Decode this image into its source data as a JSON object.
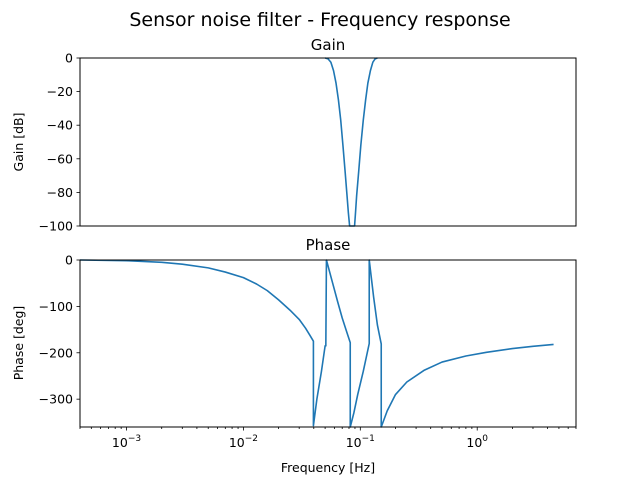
{
  "chart_data": {
    "title": "Sensor noise filter - Frequency response",
    "type": "line",
    "line_color": "#1f77b4",
    "x_scale": "log",
    "x_range": [
      0.0004,
      7.0
    ],
    "xlabel": "Frequency [Hz]",
    "x_major_ticks": [
      {
        "value": 0.001,
        "label": "10",
        "exp": "−3"
      },
      {
        "value": 0.01,
        "label": "10",
        "exp": "−2"
      },
      {
        "value": 0.1,
        "label": "10",
        "exp": "−1"
      },
      {
        "value": 1,
        "label": "10",
        "exp": "0"
      }
    ],
    "subplots": [
      {
        "title": "Gain",
        "ylabel": "Gain [dB]",
        "ylim": [
          -100,
          0
        ],
        "yticks": [
          {
            "value": 0,
            "label": "0"
          },
          {
            "value": -20,
            "label": "−20"
          },
          {
            "value": -40,
            "label": "−40"
          },
          {
            "value": -60,
            "label": "−60"
          },
          {
            "value": -80,
            "label": "−80"
          },
          {
            "value": -100,
            "label": "−100"
          }
        ],
        "show_x_ticks": false,
        "series": [
          {
            "points": [
              [
                0.05,
                0.0
              ],
              [
                0.053,
                -0.5
              ],
              [
                0.056,
                -2.5
              ],
              [
                0.059,
                -7.5
              ],
              [
                0.062,
                -15
              ],
              [
                0.065,
                -25
              ],
              [
                0.068,
                -37
              ],
              [
                0.071,
                -52
              ],
              [
                0.074,
                -67
              ],
              [
                0.077,
                -82
              ],
              [
                0.079,
                -92
              ],
              [
                0.081,
                -100
              ],
              [
                0.0893,
                -100
              ],
              [
                0.091,
                -92
              ],
              [
                0.093,
                -82
              ],
              [
                0.097,
                -67
              ],
              [
                0.101,
                -52
              ],
              [
                0.106,
                -37
              ],
              [
                0.111,
                -25
              ],
              [
                0.116,
                -15
              ],
              [
                0.122,
                -7.5
              ],
              [
                0.128,
                -2.5
              ],
              [
                0.134,
                -0.5
              ],
              [
                0.14,
                0.0
              ]
            ]
          }
        ]
      },
      {
        "title": "Phase",
        "ylabel": "Phase [deg]",
        "ylim": [
          -360,
          0
        ],
        "yticks": [
          {
            "value": 0,
            "label": "0"
          },
          {
            "value": -100,
            "label": "−100"
          },
          {
            "value": -200,
            "label": "−200"
          },
          {
            "value": -300,
            "label": "−300"
          }
        ],
        "show_x_ticks": true,
        "series": [
          {
            "points": [
              [
                0.0004,
                0
              ],
              [
                0.001,
                -1.5
              ],
              [
                0.002,
                -5
              ],
              [
                0.003,
                -9
              ],
              [
                0.005,
                -17
              ],
              [
                0.007,
                -26
              ],
              [
                0.01,
                -38
              ],
              [
                0.013,
                -52
              ],
              [
                0.016,
                -66
              ],
              [
                0.02,
                -86
              ],
              [
                0.025,
                -108
              ],
              [
                0.03,
                -128
              ],
              [
                0.034,
                -147
              ],
              [
                0.037,
                -162
              ],
              [
                0.0397,
                -175
              ],
              [
                0.0397,
                -357
              ],
              [
                0.0425,
                -300
              ],
              [
                0.0465,
                -240
              ],
              [
                0.05,
                -185
              ],
              [
                0.0507,
                -185
              ],
              [
                0.0513,
                0
              ],
              [
                0.058,
                -50
              ],
              [
                0.064,
                -90
              ],
              [
                0.07,
                -125
              ],
              [
                0.0765,
                -155
              ],
              [
                0.082,
                -178
              ],
              [
                0.082,
                -360
              ],
              [
                0.088,
                -330
              ],
              [
                0.095,
                -290
              ],
              [
                0.106,
                -240
              ],
              [
                0.1192,
                -180
              ],
              [
                0.1192,
                0
              ],
              [
                0.13,
                -80
              ],
              [
                0.14,
                -140
              ],
              [
                0.151,
                -181
              ],
              [
                0.151,
                -360
              ],
              [
                0.17,
                -325
              ],
              [
                0.2,
                -290
              ],
              [
                0.25,
                -263
              ],
              [
                0.35,
                -238
              ],
              [
                0.5,
                -220
              ],
              [
                0.8,
                -207
              ],
              [
                1.2,
                -199
              ],
              [
                2.0,
                -191
              ],
              [
                3.0,
                -186
              ],
              [
                4.5,
                -182
              ]
            ]
          }
        ]
      }
    ]
  }
}
